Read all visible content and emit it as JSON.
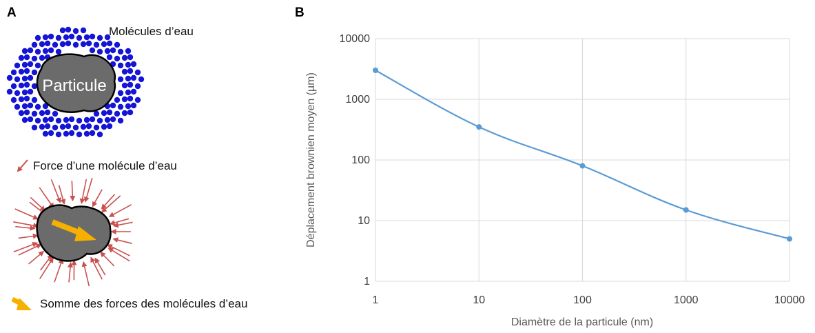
{
  "panel_a": {
    "label": "A",
    "water_molecules_label": "Molécules d’eau",
    "particle_label": "Particule",
    "force_label": "Force d’une molécule d’eau",
    "sum_label": "Somme des forces des molécules d’eau",
    "colors": {
      "molecule": "#1515d6",
      "particle": "#6b6b6b",
      "force_arrow": "#c9504f",
      "sum_arrow": "#f5b000"
    },
    "icons": [
      "water-molecule-dots",
      "particle-blob",
      "force-arrow-icon",
      "sum-arrow-icon"
    ]
  },
  "panel_b": {
    "label": "B",
    "chart_data": {
      "type": "line",
      "x": [
        1,
        10,
        100,
        1000,
        10000
      ],
      "y": [
        3000,
        350,
        80,
        15,
        5
      ],
      "xlabel": "Diamètre de la particule (nm)",
      "ylabel": "Déplacement brownien moyen (µm)",
      "xscale": "log",
      "yscale": "log",
      "xlim": [
        1,
        10000
      ],
      "ylim": [
        1,
        10000
      ],
      "xticks": [
        "1",
        "10",
        "100",
        "1000",
        "10000"
      ],
      "yticks": [
        "1",
        "10",
        "100",
        "1000",
        "10000"
      ],
      "grid": true,
      "series_color": "#5b9bd5"
    }
  }
}
